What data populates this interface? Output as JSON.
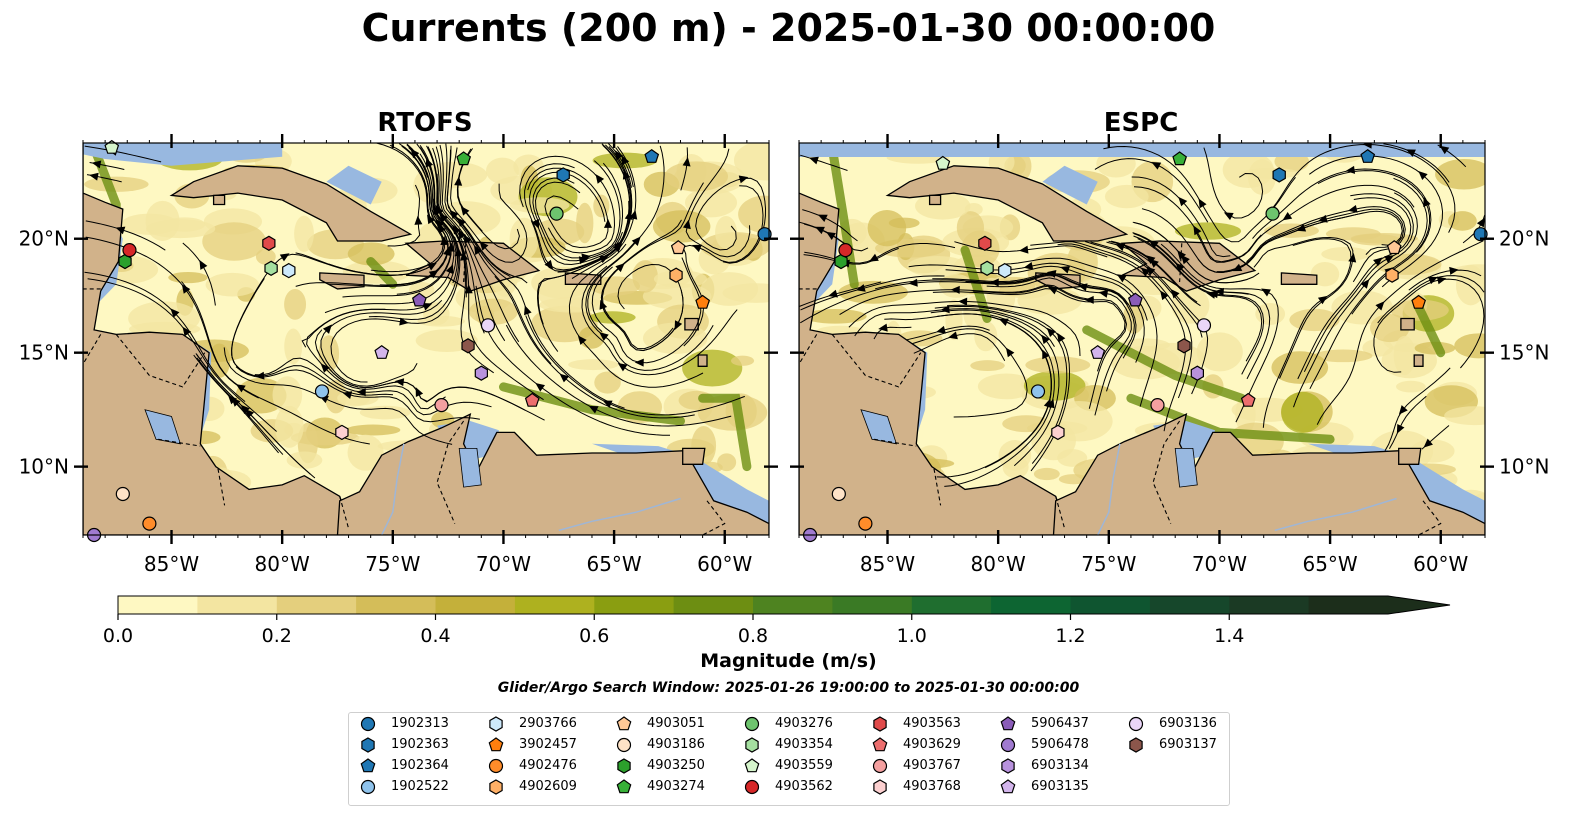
{
  "title": "Currents (200 m) - 2025-01-30 00:00:00",
  "panels": [
    {
      "title": "RTOFS"
    },
    {
      "title": "ESPC"
    }
  ],
  "axes": {
    "lon_ticks": [
      "85°W",
      "80°W",
      "75°W",
      "70°W",
      "65°W",
      "60°W"
    ],
    "lat_ticks": [
      "20°N",
      "15°N",
      "10°N"
    ]
  },
  "colors": {
    "land": "#d1b28a",
    "water": "#98b8e0",
    "coast": "#000000",
    "river": "#9fb6d6"
  },
  "colorbar": {
    "label": "Magnitude (m/s)",
    "ticks": [
      "0.0",
      "0.2",
      "0.4",
      "0.6",
      "0.8",
      "1.0",
      "1.2",
      "1.4"
    ],
    "bins": [
      "#fef8c2",
      "#f3e5a1",
      "#e4cf7d",
      "#d4bd59",
      "#c4b03a",
      "#aeb11f",
      "#8a9e11",
      "#6d8e12",
      "#4e8320",
      "#3a7a25",
      "#1f6e2f",
      "#0d6532",
      "#0f5530",
      "#16472b",
      "#1b3a24",
      "#1c2e1b"
    ]
  },
  "search_window": "Glider/Argo Search Window: 2025-01-26 19:00:00 to 2025-01-30 00:00:00",
  "legend": [
    {
      "id": "1902313",
      "color": "#1f77b4",
      "shape": "circle"
    },
    {
      "id": "1902363",
      "color": "#1f77b4",
      "shape": "hexagon"
    },
    {
      "id": "1902364",
      "color": "#1f77b4",
      "shape": "pentagon"
    },
    {
      "id": "1902522",
      "color": "#8fc3ec",
      "shape": "circle"
    },
    {
      "id": "2903766",
      "color": "#cde9fb",
      "shape": "hexagon"
    },
    {
      "id": "3902457",
      "color": "#ff7f0e",
      "shape": "pentagon"
    },
    {
      "id": "4902476",
      "color": "#ff8c2a",
      "shape": "circle"
    },
    {
      "id": "4902609",
      "color": "#ffb066",
      "shape": "hexagon"
    },
    {
      "id": "4903051",
      "color": "#ffc896",
      "shape": "pentagon"
    },
    {
      "id": "4903186",
      "color": "#ffe3c7",
      "shape": "circle"
    },
    {
      "id": "4903250",
      "color": "#2ca02c",
      "shape": "hexagon"
    },
    {
      "id": "4903274",
      "color": "#38b038",
      "shape": "pentagon"
    },
    {
      "id": "4903276",
      "color": "#6ec46e",
      "shape": "circle"
    },
    {
      "id": "4903354",
      "color": "#a5e0a0",
      "shape": "hexagon"
    },
    {
      "id": "4903559",
      "color": "#d6f5cc",
      "shape": "pentagon"
    },
    {
      "id": "4903562",
      "color": "#d62728",
      "shape": "circle"
    },
    {
      "id": "4903563",
      "color": "#e04a4a",
      "shape": "hexagon"
    },
    {
      "id": "4903629",
      "color": "#ec6e6e",
      "shape": "pentagon"
    },
    {
      "id": "4903767",
      "color": "#f4a0a0",
      "shape": "circle"
    },
    {
      "id": "4903768",
      "color": "#fcd0d0",
      "shape": "hexagon"
    },
    {
      "id": "5906437",
      "color": "#8a5cb8",
      "shape": "pentagon"
    },
    {
      "id": "5906478",
      "color": "#a07ad0",
      "shape": "circle"
    },
    {
      "id": "6903134",
      "color": "#b892dd",
      "shape": "hexagon"
    },
    {
      "id": "6903135",
      "color": "#d3b5ec",
      "shape": "pentagon"
    },
    {
      "id": "6903136",
      "color": "#ead6f8",
      "shape": "circle"
    },
    {
      "id": "6903137",
      "color": "#8c564b",
      "shape": "hexagon"
    }
  ]
}
